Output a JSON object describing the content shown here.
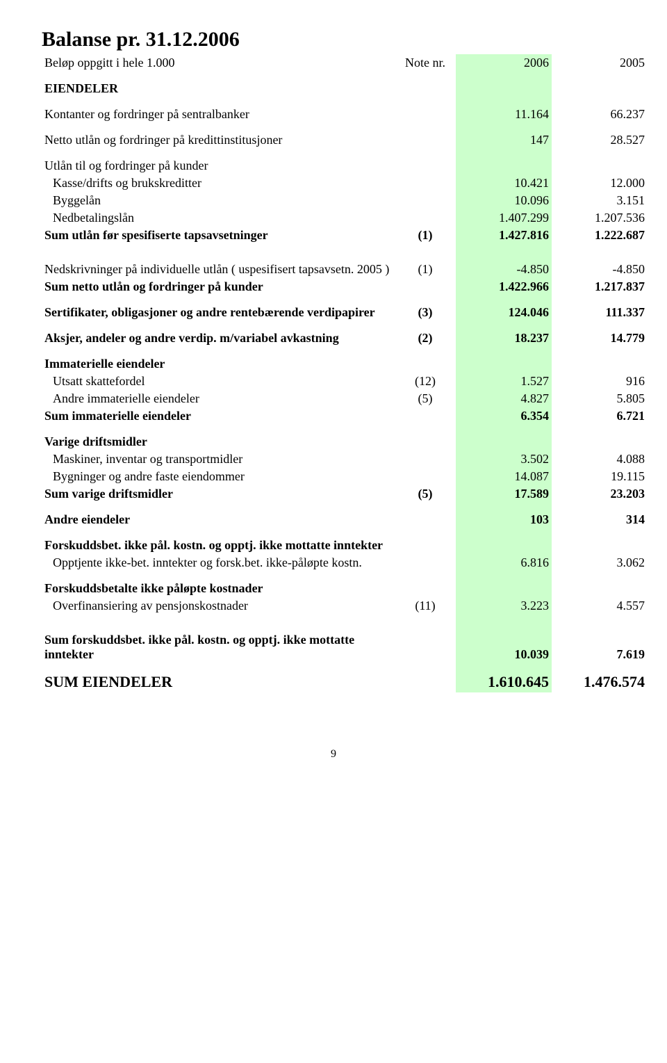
{
  "title": "Balanse pr. 31.12.2006",
  "subtitle_left": "Beløp oppgitt i hele 1.000",
  "subtitle_note": "Note nr.",
  "year1": "2006",
  "year2": "2005",
  "eiendeler_heading": "EIENDELER",
  "rows": {
    "r1": {
      "label": "Kontanter og fordringer på sentralbanker",
      "note": "",
      "y1": "11.164",
      "y2": "66.237"
    },
    "r2": {
      "label": "Netto utlån og fordringer på kredittinstitusjoner",
      "note": "",
      "y1": "147",
      "y2": "28.527"
    },
    "r3h": {
      "label": "Utlån til og fordringer på kunder"
    },
    "r3a": {
      "label": "Kasse/drifts og brukskreditter",
      "note": "",
      "y1": "10.421",
      "y2": "12.000"
    },
    "r3b": {
      "label": "Byggelån",
      "note": "",
      "y1": "10.096",
      "y2": "3.151"
    },
    "r3c": {
      "label": "Nedbetalingslån",
      "note": "",
      "y1": "1.407.299",
      "y2": "1.207.536"
    },
    "r4": {
      "label": "Sum utlån før spesifiserte tapsavsetninger",
      "note": "(1)",
      "y1": "1.427.816",
      "y2": "1.222.687"
    },
    "r5": {
      "label": "Nedskrivninger på individuelle utlån ( uspesifisert tapsavsetn. 2005 )",
      "note": "(1)",
      "y1": "-4.850",
      "y2": "-4.850"
    },
    "r6": {
      "label": "Sum netto utlån og fordringer på kunder",
      "note": "",
      "y1": "1.422.966",
      "y2": "1.217.837"
    },
    "r7": {
      "label": "Sertifikater, obligasjoner og andre rentebærende verdipapirer",
      "note": "(3)",
      "y1": "124.046",
      "y2": "111.337"
    },
    "r8": {
      "label": "Aksjer, andeler og andre verdip. m/variabel avkastning",
      "note": "(2)",
      "y1": "18.237",
      "y2": "14.779"
    },
    "r9h": {
      "label": "Immaterielle eiendeler"
    },
    "r9a": {
      "label": "Utsatt skattefordel",
      "note": "(12)",
      "y1": "1.527",
      "y2": "916"
    },
    "r9b": {
      "label": "Andre immaterielle eiendeler",
      "note": "(5)",
      "y1": "4.827",
      "y2": "5.805"
    },
    "r10": {
      "label": "Sum immaterielle eiendeler",
      "note": "",
      "y1": "6.354",
      "y2": "6.721"
    },
    "r11h": {
      "label": "Varige driftsmidler"
    },
    "r11a": {
      "label": "Maskiner, inventar og transportmidler",
      "note": "",
      "y1": "3.502",
      "y2": "4.088"
    },
    "r11b": {
      "label": "Bygninger og andre faste eiendommer",
      "note": "",
      "y1": "14.087",
      "y2": "19.115"
    },
    "r12": {
      "label": "Sum varige driftsmidler",
      "note": "(5)",
      "y1": "17.589",
      "y2": "23.203"
    },
    "r13": {
      "label": "Andre eiendeler",
      "note": "",
      "y1": "103",
      "y2": "314"
    },
    "r14h": {
      "label": "Forskuddsbet. ikke pål. kostn. og opptj. ikke mottatte inntekter"
    },
    "r14a": {
      "label": "Opptjente ikke-bet. inntekter og forsk.bet. ikke-påløpte kostn.",
      "note": "",
      "y1": "6.816",
      "y2": "3.062"
    },
    "r15h": {
      "label": "Forskuddsbetalte ikke påløpte kostnader"
    },
    "r15a": {
      "label": "Overfinansiering av pensjonskostnader",
      "note": "(11)",
      "y1": "3.223",
      "y2": "4.557"
    },
    "r16": {
      "label": "Sum forskuddsbet. ikke pål. kostn. og opptj. ikke mottatte inntekter",
      "note": "",
      "y1": "10.039",
      "y2": "7.619"
    },
    "r17": {
      "label": "SUM EIENDELER",
      "note": "",
      "y1": "1.610.645",
      "y2": "1.476.574"
    }
  },
  "page_number": "9",
  "colors": {
    "highlight": "#ccffcc",
    "text": "#000000",
    "background": "#ffffff"
  }
}
